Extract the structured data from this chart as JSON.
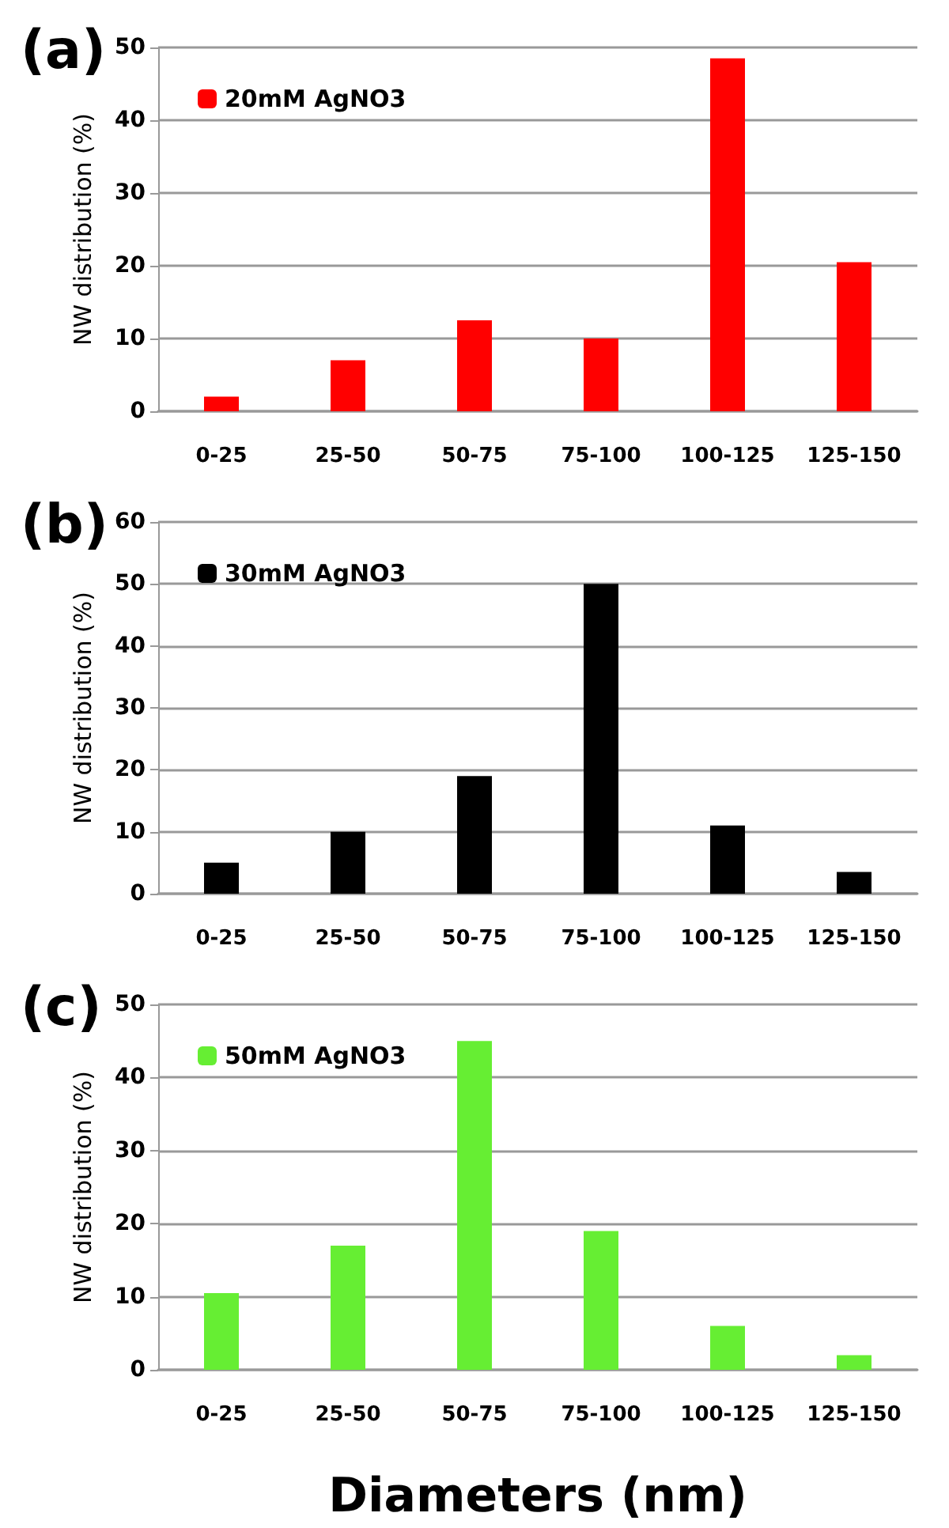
{
  "chart_data": [
    {
      "type": "bar",
      "title": "(a)",
      "ylabel": "NW distribution (%)",
      "categories": [
        "0-25",
        "25-50",
        "50-75",
        "75-100",
        "100-125",
        "125-150"
      ],
      "series": [
        {
          "name": "20mM AgNO3",
          "color": "#ff0000",
          "values": [
            2,
            7,
            12.5,
            10,
            48.5,
            20.5
          ]
        }
      ],
      "ylim": [
        0,
        50
      ],
      "yticks": [
        0,
        10,
        20,
        30,
        40,
        50
      ],
      "grid": "y",
      "legend": "top left"
    },
    {
      "type": "bar",
      "title": "(b)",
      "ylabel": "NW distribution (%)",
      "categories": [
        "0-25",
        "25-50",
        "50-75",
        "75-100",
        "100-125",
        "125-150"
      ],
      "series": [
        {
          "name": "30mM AgNO3",
          "color": "#000000",
          "values": [
            5,
            10,
            19,
            50,
            11,
            3.5
          ]
        }
      ],
      "ylim": [
        0,
        60
      ],
      "yticks": [
        0,
        10,
        20,
        30,
        40,
        50,
        60
      ],
      "grid": "y",
      "legend": "top left"
    },
    {
      "type": "bar",
      "title": "(c)",
      "xlabel": "Diameters (nm)",
      "ylabel": "NW distribution (%)",
      "categories": [
        "0-25",
        "25-50",
        "50-75",
        "75-100",
        "100-125",
        "125-150"
      ],
      "series": [
        {
          "name": "50mM AgNO3",
          "color": "#66ee33",
          "values": [
            10.5,
            17,
            45,
            19,
            6,
            2
          ]
        }
      ],
      "ylim": [
        0,
        50
      ],
      "yticks": [
        0,
        10,
        20,
        30,
        40,
        50
      ],
      "grid": "y",
      "legend": "top left"
    }
  ]
}
